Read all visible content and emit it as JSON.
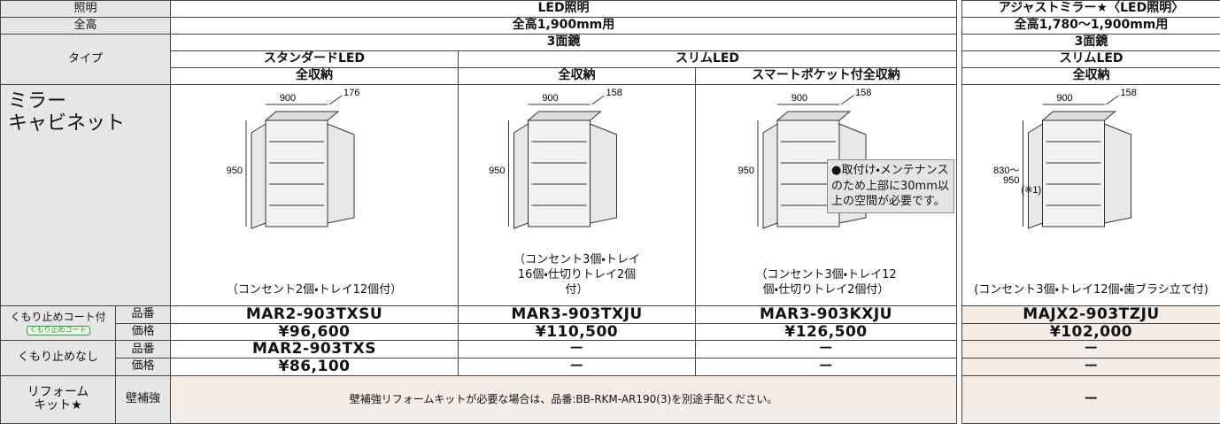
{
  "header": {
    "lighting_label": "照明",
    "lighting": "LED照明",
    "adjust_lighting": "アジャストミラー★〈LED照明〉",
    "height_label": "全高",
    "height": "全高1,900mm用",
    "adjust_height": "全高1,780～1,900mm用",
    "type_label": "タイプ",
    "mirror": "3面鏡",
    "adjust_mirror": "3面鏡",
    "standard": "スタンダードLED",
    "slim": "スリムLED",
    "adjust_slim": "スリムLED",
    "storage": [
      "全収納",
      "全収納",
      "スマートポケット付全収納",
      "全収納"
    ]
  },
  "cabinet_label": [
    "ミラー",
    "キャビネット"
  ],
  "products": [
    {
      "width": "900",
      "depth": "176",
      "height": [
        "950"
      ],
      "note": "（コンセント2個・トレイ12個付）"
    },
    {
      "width": "900",
      "depth": "158",
      "height": [
        "950"
      ],
      "note": "（コンセント3個・トレイ16個・仕切りトレイ2個付）"
    },
    {
      "width": "900",
      "depth": "158",
      "height": [
        "950"
      ],
      "note": "（コンセント3個・トレイ12個・仕切りトレイ2個付）"
    },
    {
      "width": "900",
      "depth": "158",
      "height": [
        "830～",
        "950",
        "(※1)"
      ],
      "note": "(コンセント3個・トレイ12個・歯ブラシ立て付)"
    }
  ],
  "notice": "●取付け・メンテナンスのため上部に30mm以上の空間が必要です。",
  "anti_fog": {
    "label": "くもり止めコート付",
    "badge": "くもり止めコート",
    "part_label": "品番",
    "price_label": "価格",
    "parts": [
      "MAR2-903TXSU",
      "MAR3-903TXJU",
      "MAR3-903KXJU",
      "MAJX2-903TZJU"
    ],
    "prices": [
      "¥96,600",
      "¥110,500",
      "¥126,500",
      "¥102,000"
    ]
  },
  "no_fog": {
    "label": "くもり止めなし",
    "part_label": "品番",
    "price_label": "価格",
    "parts": [
      "MAR2-903TXS",
      "－",
      "－",
      "－"
    ],
    "prices": [
      "¥86,100",
      "－",
      "－",
      "－"
    ]
  },
  "reform": {
    "label": [
      "リフォーム",
      "キット★"
    ],
    "sub": "壁補強",
    "text": "壁補強リフォームキットが必要な場合は、品番:BB-RKM-AR190(3)を別途手配ください。",
    "adjust": "－"
  }
}
